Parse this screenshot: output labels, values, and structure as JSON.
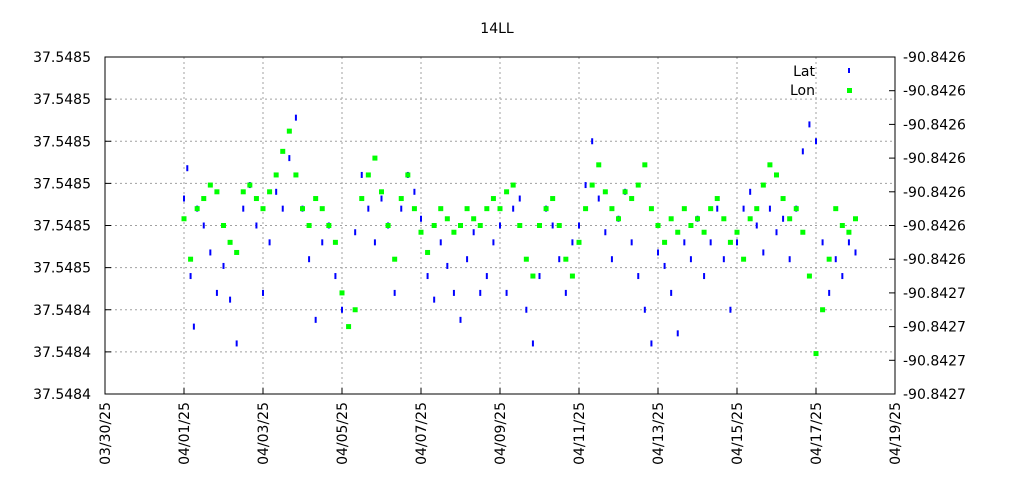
{
  "chart_data": {
    "type": "scatter",
    "title": "14LL",
    "xlabel": "",
    "ylabel": "",
    "y2label": "",
    "grid": true,
    "legend_position": "top-right",
    "x_range": [
      "2025-03-30",
      "2025-04-19"
    ],
    "x_tick_labels": [
      "03/30/25",
      "04/01/25",
      "04/03/25",
      "04/05/25",
      "04/07/25",
      "04/09/25",
      "04/11/25",
      "04/13/25",
      "04/15/25",
      "04/17/25",
      "04/19/25"
    ],
    "y_tick_labels": [
      "37.5485",
      "37.5485",
      "37.5485",
      "37.5485",
      "37.5485",
      "37.5485",
      "37.5484",
      "37.5484",
      "37.5484"
    ],
    "y2_tick_labels": [
      "-90.8426",
      "-90.8426",
      "-90.8426",
      "-90.8426",
      "-90.8426",
      "-90.8426",
      "-90.8426",
      "-90.8427",
      "-90.8427",
      "-90.8427",
      "-90.8427"
    ],
    "series": [
      {
        "name": "Lat",
        "color": "#0000ff",
        "axis": "left",
        "points": [
          {
            "x": "2025-04-01T00:00",
            "y": 0.58
          },
          {
            "x": "2025-04-01T02:00",
            "y": 0.67
          },
          {
            "x": "2025-04-01T04:00",
            "y": 0.35
          },
          {
            "x": "2025-04-01T06:00",
            "y": 0.2
          },
          {
            "x": "2025-04-01T08:00",
            "y": 0.55
          },
          {
            "x": "2025-04-01T12:00",
            "y": 0.5
          },
          {
            "x": "2025-04-01T16:00",
            "y": 0.42
          },
          {
            "x": "2025-04-01T20:00",
            "y": 0.3
          },
          {
            "x": "2025-04-02T00:00",
            "y": 0.38
          },
          {
            "x": "2025-04-02T04:00",
            "y": 0.28
          },
          {
            "x": "2025-04-02T08:00",
            "y": 0.15
          },
          {
            "x": "2025-04-02T12:00",
            "y": 0.55
          },
          {
            "x": "2025-04-02T16:00",
            "y": 0.62
          },
          {
            "x": "2025-04-02T20:00",
            "y": 0.5
          },
          {
            "x": "2025-04-03T00:00",
            "y": 0.3
          },
          {
            "x": "2025-04-03T04:00",
            "y": 0.45
          },
          {
            "x": "2025-04-03T08:00",
            "y": 0.6
          },
          {
            "x": "2025-04-03T12:00",
            "y": 0.55
          },
          {
            "x": "2025-04-03T16:00",
            "y": 0.7
          },
          {
            "x": "2025-04-03T20:00",
            "y": 0.82
          },
          {
            "x": "2025-04-04T00:00",
            "y": 0.55
          },
          {
            "x": "2025-04-04T04:00",
            "y": 0.4
          },
          {
            "x": "2025-04-04T08:00",
            "y": 0.22
          },
          {
            "x": "2025-04-04T12:00",
            "y": 0.45
          },
          {
            "x": "2025-04-04T16:00",
            "y": 0.5
          },
          {
            "x": "2025-04-04T20:00",
            "y": 0.35
          },
          {
            "x": "2025-04-05T00:00",
            "y": 0.25
          },
          {
            "x": "2025-04-05T08:00",
            "y": 0.48
          },
          {
            "x": "2025-04-05T12:00",
            "y": 0.65
          },
          {
            "x": "2025-04-05T16:00",
            "y": 0.55
          },
          {
            "x": "2025-04-05T20:00",
            "y": 0.45
          },
          {
            "x": "2025-04-06T00:00",
            "y": 0.58
          },
          {
            "x": "2025-04-06T04:00",
            "y": 0.5
          },
          {
            "x": "2025-04-06T08:00",
            "y": 0.3
          },
          {
            "x": "2025-04-06T12:00",
            "y": 0.55
          },
          {
            "x": "2025-04-06T16:00",
            "y": 0.65
          },
          {
            "x": "2025-04-06T20:00",
            "y": 0.6
          },
          {
            "x": "2025-04-07T00:00",
            "y": 0.52
          },
          {
            "x": "2025-04-07T04:00",
            "y": 0.35
          },
          {
            "x": "2025-04-07T08:00",
            "y": 0.28
          },
          {
            "x": "2025-04-07T12:00",
            "y": 0.45
          },
          {
            "x": "2025-04-07T16:00",
            "y": 0.38
          },
          {
            "x": "2025-04-07T20:00",
            "y": 0.3
          },
          {
            "x": "2025-04-08T00:00",
            "y": 0.22
          },
          {
            "x": "2025-04-08T04:00",
            "y": 0.4
          },
          {
            "x": "2025-04-08T08:00",
            "y": 0.48
          },
          {
            "x": "2025-04-08T12:00",
            "y": 0.3
          },
          {
            "x": "2025-04-08T16:00",
            "y": 0.35
          },
          {
            "x": "2025-04-08T20:00",
            "y": 0.45
          },
          {
            "x": "2025-04-09T00:00",
            "y": 0.5
          },
          {
            "x": "2025-04-09T04:00",
            "y": 0.3
          },
          {
            "x": "2025-04-09T08:00",
            "y": 0.55
          },
          {
            "x": "2025-04-09T12:00",
            "y": 0.58
          },
          {
            "x": "2025-04-09T16:00",
            "y": 0.25
          },
          {
            "x": "2025-04-09T20:00",
            "y": 0.15
          },
          {
            "x": "2025-04-10T00:00",
            "y": 0.35
          },
          {
            "x": "2025-04-10T04:00",
            "y": 0.55
          },
          {
            "x": "2025-04-10T08:00",
            "y": 0.5
          },
          {
            "x": "2025-04-10T12:00",
            "y": 0.4
          },
          {
            "x": "2025-04-10T16:00",
            "y": 0.3
          },
          {
            "x": "2025-04-10T20:00",
            "y": 0.45
          },
          {
            "x": "2025-04-11T00:00",
            "y": 0.5
          },
          {
            "x": "2025-04-11T04:00",
            "y": 0.62
          },
          {
            "x": "2025-04-11T08:00",
            "y": 0.75
          },
          {
            "x": "2025-04-11T12:00",
            "y": 0.58
          },
          {
            "x": "2025-04-11T16:00",
            "y": 0.48
          },
          {
            "x": "2025-04-11T20:00",
            "y": 0.4
          },
          {
            "x": "2025-04-12T00:00",
            "y": 0.52
          },
          {
            "x": "2025-04-12T04:00",
            "y": 0.6
          },
          {
            "x": "2025-04-12T08:00",
            "y": 0.45
          },
          {
            "x": "2025-04-12T12:00",
            "y": 0.35
          },
          {
            "x": "2025-04-12T16:00",
            "y": 0.25
          },
          {
            "x": "2025-04-12T20:00",
            "y": 0.15
          },
          {
            "x": "2025-04-13T00:00",
            "y": 0.42
          },
          {
            "x": "2025-04-13T04:00",
            "y": 0.38
          },
          {
            "x": "2025-04-13T08:00",
            "y": 0.3
          },
          {
            "x": "2025-04-13T12:00",
            "y": 0.18
          },
          {
            "x": "2025-04-13T16:00",
            "y": 0.45
          },
          {
            "x": "2025-04-13T20:00",
            "y": 0.4
          },
          {
            "x": "2025-04-14T00:00",
            "y": 0.52
          },
          {
            "x": "2025-04-14T04:00",
            "y": 0.35
          },
          {
            "x": "2025-04-14T08:00",
            "y": 0.45
          },
          {
            "x": "2025-04-14T12:00",
            "y": 0.55
          },
          {
            "x": "2025-04-14T16:00",
            "y": 0.4
          },
          {
            "x": "2025-04-14T20:00",
            "y": 0.25
          },
          {
            "x": "2025-04-15T00:00",
            "y": 0.45
          },
          {
            "x": "2025-04-15T04:00",
            "y": 0.55
          },
          {
            "x": "2025-04-15T08:00",
            "y": 0.6
          },
          {
            "x": "2025-04-15T12:00",
            "y": 0.5
          },
          {
            "x": "2025-04-15T16:00",
            "y": 0.42
          },
          {
            "x": "2025-04-15T20:00",
            "y": 0.55
          },
          {
            "x": "2025-04-16T00:00",
            "y": 0.48
          },
          {
            "x": "2025-04-16T04:00",
            "y": 0.52
          },
          {
            "x": "2025-04-16T08:00",
            "y": 0.4
          },
          {
            "x": "2025-04-16T12:00",
            "y": 0.55
          },
          {
            "x": "2025-04-16T16:00",
            "y": 0.72
          },
          {
            "x": "2025-04-16T20:00",
            "y": 0.8
          },
          {
            "x": "2025-04-17T00:00",
            "y": 0.75
          },
          {
            "x": "2025-04-17T04:00",
            "y": 0.45
          },
          {
            "x": "2025-04-17T08:00",
            "y": 0.3
          },
          {
            "x": "2025-04-17T12:00",
            "y": 0.4
          },
          {
            "x": "2025-04-17T16:00",
            "y": 0.35
          },
          {
            "x": "2025-04-17T20:00",
            "y": 0.45
          },
          {
            "x": "2025-04-18T00:00",
            "y": 0.42
          }
        ]
      },
      {
        "name": "Lon",
        "color": "#00ff00",
        "axis": "right",
        "points": [
          {
            "x": "2025-04-01T00:00",
            "y": 0.52
          },
          {
            "x": "2025-04-01T04:00",
            "y": 0.4
          },
          {
            "x": "2025-04-01T08:00",
            "y": 0.55
          },
          {
            "x": "2025-04-01T12:00",
            "y": 0.58
          },
          {
            "x": "2025-04-01T16:00",
            "y": 0.62
          },
          {
            "x": "2025-04-01T20:00",
            "y": 0.6
          },
          {
            "x": "2025-04-02T00:00",
            "y": 0.5
          },
          {
            "x": "2025-04-02T04:00",
            "y": 0.45
          },
          {
            "x": "2025-04-02T08:00",
            "y": 0.42
          },
          {
            "x": "2025-04-02T12:00",
            "y": 0.6
          },
          {
            "x": "2025-04-02T16:00",
            "y": 0.62
          },
          {
            "x": "2025-04-02T20:00",
            "y": 0.58
          },
          {
            "x": "2025-04-03T00:00",
            "y": 0.55
          },
          {
            "x": "2025-04-03T04:00",
            "y": 0.6
          },
          {
            "x": "2025-04-03T08:00",
            "y": 0.65
          },
          {
            "x": "2025-04-03T12:00",
            "y": 0.72
          },
          {
            "x": "2025-04-03T16:00",
            "y": 0.78
          },
          {
            "x": "2025-04-03T20:00",
            "y": 0.65
          },
          {
            "x": "2025-04-04T00:00",
            "y": 0.55
          },
          {
            "x": "2025-04-04T04:00",
            "y": 0.5
          },
          {
            "x": "2025-04-04T08:00",
            "y": 0.58
          },
          {
            "x": "2025-04-04T12:00",
            "y": 0.55
          },
          {
            "x": "2025-04-04T16:00",
            "y": 0.5
          },
          {
            "x": "2025-04-04T20:00",
            "y": 0.45
          },
          {
            "x": "2025-04-05T00:00",
            "y": 0.3
          },
          {
            "x": "2025-04-05T04:00",
            "y": 0.2
          },
          {
            "x": "2025-04-05T08:00",
            "y": 0.25
          },
          {
            "x": "2025-04-05T12:00",
            "y": 0.58
          },
          {
            "x": "2025-04-05T16:00",
            "y": 0.65
          },
          {
            "x": "2025-04-05T20:00",
            "y": 0.7
          },
          {
            "x": "2025-04-06T00:00",
            "y": 0.6
          },
          {
            "x": "2025-04-06T04:00",
            "y": 0.5
          },
          {
            "x": "2025-04-06T08:00",
            "y": 0.4
          },
          {
            "x": "2025-04-06T12:00",
            "y": 0.58
          },
          {
            "x": "2025-04-06T16:00",
            "y": 0.65
          },
          {
            "x": "2025-04-06T20:00",
            "y": 0.55
          },
          {
            "x": "2025-04-07T00:00",
            "y": 0.48
          },
          {
            "x": "2025-04-07T04:00",
            "y": 0.42
          },
          {
            "x": "2025-04-07T08:00",
            "y": 0.5
          },
          {
            "x": "2025-04-07T12:00",
            "y": 0.55
          },
          {
            "x": "2025-04-07T16:00",
            "y": 0.52
          },
          {
            "x": "2025-04-07T20:00",
            "y": 0.48
          },
          {
            "x": "2025-04-08T00:00",
            "y": 0.5
          },
          {
            "x": "2025-04-08T04:00",
            "y": 0.55
          },
          {
            "x": "2025-04-08T08:00",
            "y": 0.52
          },
          {
            "x": "2025-04-08T12:00",
            "y": 0.5
          },
          {
            "x": "2025-04-08T16:00",
            "y": 0.55
          },
          {
            "x": "2025-04-08T20:00",
            "y": 0.58
          },
          {
            "x": "2025-04-09T00:00",
            "y": 0.55
          },
          {
            "x": "2025-04-09T04:00",
            "y": 0.6
          },
          {
            "x": "2025-04-09T08:00",
            "y": 0.62
          },
          {
            "x": "2025-04-09T12:00",
            "y": 0.5
          },
          {
            "x": "2025-04-09T16:00",
            "y": 0.4
          },
          {
            "x": "2025-04-09T20:00",
            "y": 0.35
          },
          {
            "x": "2025-04-10T00:00",
            "y": 0.5
          },
          {
            "x": "2025-04-10T04:00",
            "y": 0.55
          },
          {
            "x": "2025-04-10T08:00",
            "y": 0.58
          },
          {
            "x": "2025-04-10T12:00",
            "y": 0.5
          },
          {
            "x": "2025-04-10T16:00",
            "y": 0.4
          },
          {
            "x": "2025-04-10T20:00",
            "y": 0.35
          },
          {
            "x": "2025-04-11T00:00",
            "y": 0.45
          },
          {
            "x": "2025-04-11T04:00",
            "y": 0.55
          },
          {
            "x": "2025-04-11T08:00",
            "y": 0.62
          },
          {
            "x": "2025-04-11T12:00",
            "y": 0.68
          },
          {
            "x": "2025-04-11T16:00",
            "y": 0.6
          },
          {
            "x": "2025-04-11T20:00",
            "y": 0.55
          },
          {
            "x": "2025-04-12T00:00",
            "y": 0.52
          },
          {
            "x": "2025-04-12T04:00",
            "y": 0.6
          },
          {
            "x": "2025-04-12T08:00",
            "y": 0.58
          },
          {
            "x": "2025-04-12T12:00",
            "y": 0.62
          },
          {
            "x": "2025-04-12T16:00",
            "y": 0.68
          },
          {
            "x": "2025-04-12T20:00",
            "y": 0.55
          },
          {
            "x": "2025-04-13T00:00",
            "y": 0.5
          },
          {
            "x": "2025-04-13T04:00",
            "y": 0.45
          },
          {
            "x": "2025-04-13T08:00",
            "y": 0.52
          },
          {
            "x": "2025-04-13T12:00",
            "y": 0.48
          },
          {
            "x": "2025-04-13T16:00",
            "y": 0.55
          },
          {
            "x": "2025-04-13T20:00",
            "y": 0.5
          },
          {
            "x": "2025-04-14T00:00",
            "y": 0.52
          },
          {
            "x": "2025-04-14T04:00",
            "y": 0.48
          },
          {
            "x": "2025-04-14T08:00",
            "y": 0.55
          },
          {
            "x": "2025-04-14T12:00",
            "y": 0.58
          },
          {
            "x": "2025-04-14T16:00",
            "y": 0.52
          },
          {
            "x": "2025-04-14T20:00",
            "y": 0.45
          },
          {
            "x": "2025-04-15T00:00",
            "y": 0.48
          },
          {
            "x": "2025-04-15T04:00",
            "y": 0.4
          },
          {
            "x": "2025-04-15T08:00",
            "y": 0.52
          },
          {
            "x": "2025-04-15T12:00",
            "y": 0.55
          },
          {
            "x": "2025-04-15T16:00",
            "y": 0.62
          },
          {
            "x": "2025-04-15T20:00",
            "y": 0.68
          },
          {
            "x": "2025-04-16T00:00",
            "y": 0.65
          },
          {
            "x": "2025-04-16T04:00",
            "y": 0.58
          },
          {
            "x": "2025-04-16T08:00",
            "y": 0.52
          },
          {
            "x": "2025-04-16T12:00",
            "y": 0.55
          },
          {
            "x": "2025-04-16T16:00",
            "y": 0.48
          },
          {
            "x": "2025-04-16T20:00",
            "y": 0.35
          },
          {
            "x": "2025-04-17T00:00",
            "y": 0.12
          },
          {
            "x": "2025-04-17T04:00",
            "y": 0.25
          },
          {
            "x": "2025-04-17T08:00",
            "y": 0.4
          },
          {
            "x": "2025-04-17T12:00",
            "y": 0.55
          },
          {
            "x": "2025-04-17T16:00",
            "y": 0.5
          },
          {
            "x": "2025-04-17T20:00",
            "y": 0.48
          },
          {
            "x": "2025-04-18T00:00",
            "y": 0.52
          }
        ]
      }
    ]
  }
}
